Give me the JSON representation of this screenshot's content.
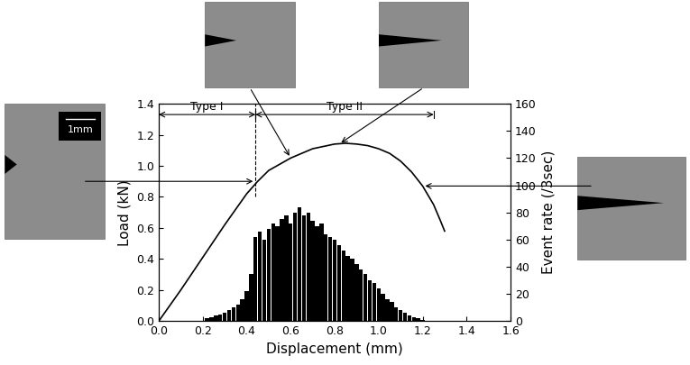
{
  "chart_data": {
    "type": "line",
    "x_label": "Displacement (mm)",
    "y_label": "Load (kN)",
    "y2_label": "Event rate (/3sec)",
    "xlim": [
      0,
      1.6
    ],
    "xticks": [
      {
        "value": 0,
        "label": "0.0"
      },
      {
        "value": 0.2,
        "label": "0.2"
      },
      {
        "value": 0.4,
        "label": "0.4"
      },
      {
        "value": 0.6,
        "label": "0.6"
      },
      {
        "value": 0.8,
        "label": "0.8"
      },
      {
        "value": 1.0,
        "label": "1.0"
      },
      {
        "value": 1.2,
        "label": "1.2"
      },
      {
        "value": 1.4,
        "label": "1.4"
      },
      {
        "value": 1.6,
        "label": "1.6"
      }
    ],
    "ylim": [
      0,
      1.4
    ],
    "yticks": [
      {
        "value": 0,
        "label": "0.0"
      },
      {
        "value": 0.2,
        "label": "0.2"
      },
      {
        "value": 0.4,
        "label": "0.4"
      },
      {
        "value": 0.6,
        "label": "0.6"
      },
      {
        "value": 0.8,
        "label": "0.8"
      },
      {
        "value": 1.0,
        "label": "1.0"
      },
      {
        "value": 1.2,
        "label": "1.2"
      },
      {
        "value": 1.4,
        "label": "1.4"
      }
    ],
    "y2lim": [
      0,
      160
    ],
    "y2ticks": [
      0,
      20,
      40,
      60,
      80,
      100,
      120,
      140,
      160
    ],
    "series": [
      {
        "type": "line",
        "color": "#000000",
        "x": [
          0,
          0.1,
          0.2,
          0.3,
          0.4,
          0.45,
          0.5,
          0.6,
          0.7,
          0.8,
          0.85,
          0.9,
          0.95,
          1.0,
          1.05,
          1.1,
          1.15,
          1.2,
          1.25,
          1.28,
          1.3
        ],
        "values": [
          0,
          0.2,
          0.41,
          0.62,
          0.82,
          0.9,
          0.97,
          1.05,
          1.11,
          1.14,
          1.145,
          1.14,
          1.13,
          1.11,
          1.08,
          1.03,
          0.96,
          0.87,
          0.75,
          0.65,
          0.58
        ]
      },
      {
        "type": "bar",
        "axis": "y2",
        "color": "#000000",
        "x": [
          0.22,
          0.24,
          0.26,
          0.28,
          0.3,
          0.32,
          0.34,
          0.36,
          0.38,
          0.4,
          0.42,
          0.44,
          0.46,
          0.48,
          0.5,
          0.52,
          0.54,
          0.56,
          0.58,
          0.6,
          0.62,
          0.64,
          0.66,
          0.68,
          0.7,
          0.72,
          0.74,
          0.76,
          0.78,
          0.8,
          0.82,
          0.84,
          0.86,
          0.88,
          0.9,
          0.92,
          0.94,
          0.96,
          0.98,
          1.0,
          1.02,
          1.04,
          1.06,
          1.08,
          1.1,
          1.12,
          1.14,
          1.16,
          1.18,
          1.2
        ],
        "values": [
          2,
          3,
          4,
          5,
          6,
          8,
          10,
          12,
          16,
          22,
          35,
          62,
          66,
          60,
          68,
          72,
          70,
          75,
          78,
          72,
          80,
          84,
          78,
          80,
          74,
          70,
          72,
          64,
          62,
          60,
          56,
          52,
          48,
          46,
          42,
          38,
          35,
          30,
          28,
          24,
          20,
          16,
          14,
          10,
          8,
          6,
          4,
          3,
          2,
          1
        ]
      }
    ],
    "annotations": [
      {
        "text": "Type I",
        "x_start": 0,
        "x_end": 0.44,
        "y": 1.33
      },
      {
        "text": "Type II",
        "x_start": 0.44,
        "x_end": 1.25,
        "y": 1.33
      }
    ],
    "boundary": 0.44,
    "photos": [
      {
        "label": "1mm",
        "x": 0.44,
        "y": 0.9
      },
      {
        "x": 0.6,
        "y": 1.05
      },
      {
        "x": 0.82,
        "y": 1.14
      },
      {
        "x": 1.2,
        "y": 0.87
      }
    ]
  }
}
